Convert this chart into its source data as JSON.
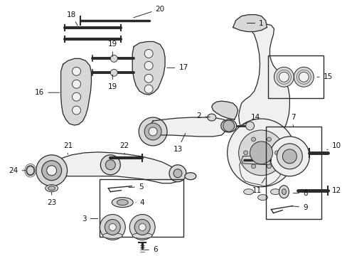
{
  "bg_color": "#ffffff",
  "fig_width": 4.89,
  "fig_height": 3.6,
  "dpi": 100,
  "line_color": "#2a2a2a",
  "fill_light": "#f0f0f0",
  "fill_mid": "#d8d8d8",
  "fill_dark": "#b8b8b8",
  "label_fs": 7.5,
  "anno_lw": 0.7,
  "part_lw": 0.9
}
